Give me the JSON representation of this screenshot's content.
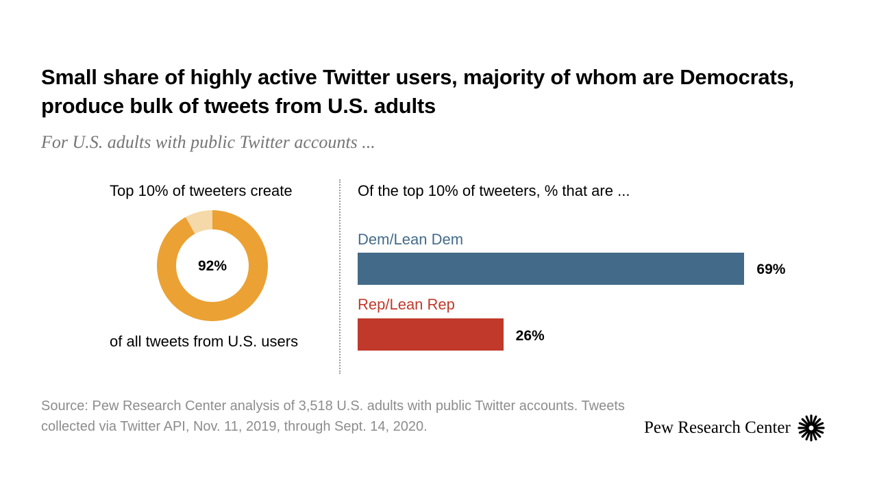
{
  "title": "Small share of highly active Twitter users, majority of whom are Democrats, produce bulk of tweets from U.S. adults",
  "subtitle": "For U.S. adults with public Twitter accounts ...",
  "source": "Source: Pew Research Center analysis of 3,518 U.S. adults with public Twitter accounts. Tweets collected via Twitter API, Nov. 11, 2019, through Sept. 14, 2020.",
  "logo": {
    "text": "Pew Research Center",
    "icon": "sunburst-icon"
  },
  "chart_data": [
    {
      "type": "pie",
      "style": "donut",
      "top_label": "Top 10% of tweeters create",
      "bottom_label": "of all tweets from U.S. users",
      "center_label": "92%",
      "values": [
        92,
        8
      ],
      "colors": [
        "#EBA133",
        "#F6D9A8"
      ]
    },
    {
      "type": "bar",
      "orientation": "horizontal",
      "heading": "Of the top 10% of tweeters, % that are ...",
      "categories": [
        "Dem/Lean Dem",
        "Rep/Lean Rep"
      ],
      "values": [
        69,
        26
      ],
      "value_labels": [
        "69%",
        "26%"
      ],
      "colors": [
        "#436B89",
        "#C0392B"
      ],
      "xlim": [
        0,
        100
      ]
    }
  ]
}
